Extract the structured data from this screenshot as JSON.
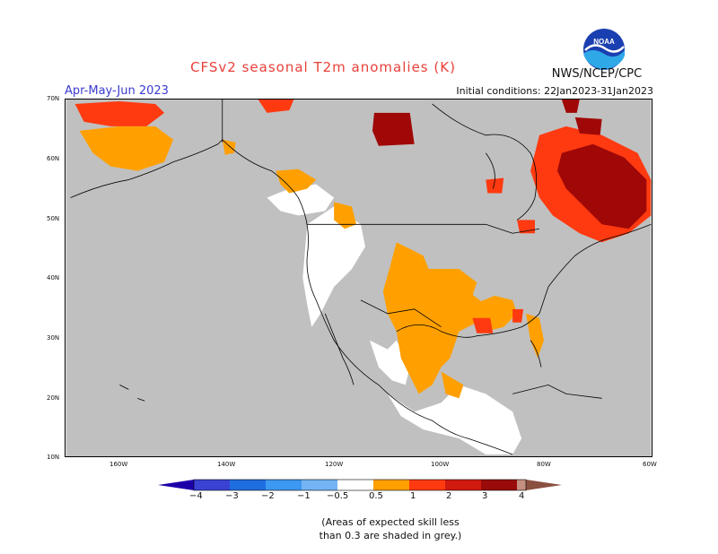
{
  "title": "CFSv2 seasonal T2m anomalies (K)",
  "season": "Apr-May-Jun 2023",
  "initial_conditions": "Initial conditions: 22Jan2023-31Jan2023",
  "agency": "NWS/NCEP/CPC",
  "logo": {
    "name": "noaa-logo",
    "text": "NOAA"
  },
  "latitude_labels": [
    "70N",
    "60N",
    "50N",
    "40N",
    "30N",
    "20N",
    "10N"
  ],
  "longitude_labels": [
    "160W",
    "140W",
    "120W",
    "100W",
    "80W",
    "60W"
  ],
  "colorbar": {
    "labels": [
      "−4",
      "−3",
      "−2",
      "−1",
      "−0.5",
      "0.5",
      "1",
      "2",
      "3",
      "4"
    ],
    "colors": [
      "#1c00a8",
      "#3a42d4",
      "#1e6ee0",
      "#3c98f0",
      "#74b4f4",
      "#ffffff",
      "#ff9f00",
      "#ff3a10",
      "#d01a10",
      "#9a0a0a",
      "#c49080",
      "#8a5040"
    ]
  },
  "note": [
    "(Areas of expected skill less",
    "than 0.3 are shaded in grey.)"
  ],
  "colors": {
    "no_skill": "#c0c0c0",
    "anom_05_1": "#ffa000",
    "anom_1_2": "#ff3a10",
    "anom_2_3": "#a00808",
    "neutral": "#ffffff"
  }
}
